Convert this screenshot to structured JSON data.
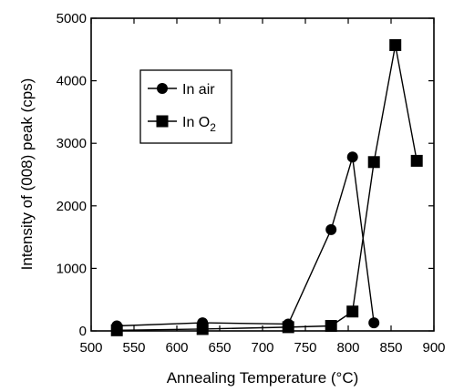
{
  "chart_data": {
    "type": "line",
    "xlabel": "Annealing Temperature (°C)",
    "ylabel": "Intensity of (008) peak (cps)",
    "xlim": [
      500,
      900
    ],
    "ylim": [
      0,
      5000
    ],
    "xticks": [
      500,
      550,
      600,
      650,
      700,
      750,
      800,
      850,
      900
    ],
    "yticks": [
      0,
      1000,
      2000,
      3000,
      4000,
      5000
    ],
    "grid": false,
    "legend_position": "upper-left",
    "series": [
      {
        "name": "In air",
        "marker": "circle",
        "color": "#000000",
        "x": [
          530,
          630,
          730,
          780,
          805,
          830
        ],
        "y": [
          80,
          130,
          110,
          1620,
          2780,
          130
        ]
      },
      {
        "name": "In O₂",
        "legend_base": "In O",
        "legend_sub": "2",
        "marker": "square",
        "color": "#000000",
        "x": [
          530,
          630,
          730,
          780,
          805,
          830,
          855,
          880
        ],
        "y": [
          10,
          30,
          60,
          80,
          310,
          2700,
          4570,
          2720
        ]
      }
    ]
  }
}
